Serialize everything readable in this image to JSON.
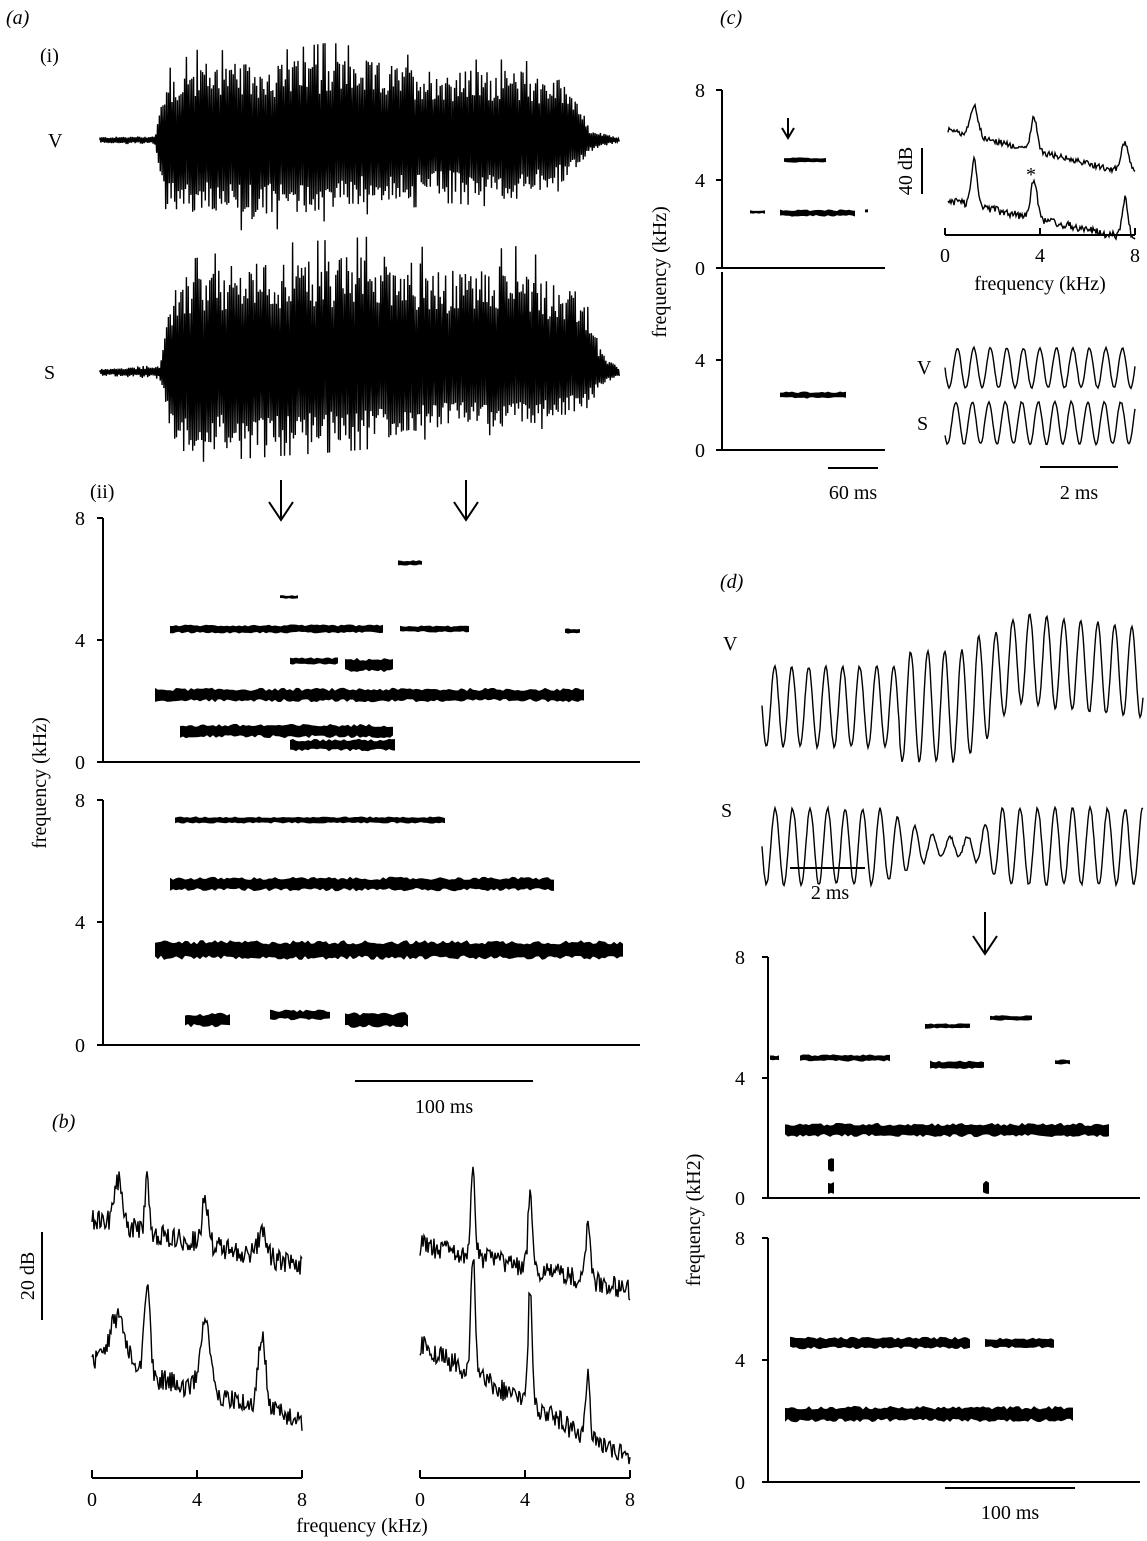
{
  "panel_a": {
    "label": "(a)",
    "sub_i": "(i)",
    "trace_labels": [
      "V",
      "S"
    ],
    "sub_ii": "(ii)",
    "y_axis_title": "frequency (kHz)",
    "ticks": [
      "0",
      "4",
      "8"
    ],
    "scale_bar": "100 ms"
  },
  "panel_b": {
    "label": "(b)",
    "scale_bar": "20 dB",
    "x_ticks": [
      "0",
      "4",
      "8"
    ],
    "x_axis_title": "frequency (kHz)"
  },
  "panel_c": {
    "label": "(c)",
    "y_axis_title": "frequency (kHz)",
    "ticks": [
      "0",
      "4",
      "8"
    ],
    "time_bar": "60 ms",
    "db_bar": "40 dB",
    "asterisk": "*",
    "spectrum_ticks": [
      "0",
      "4",
      "8"
    ],
    "spectrum_axis_title": "frequency (kHz)",
    "trace_labels": [
      "V",
      "S"
    ],
    "trace_bar": "2 ms"
  },
  "panel_d": {
    "label": "(d)",
    "trace_labels": [
      "V",
      "S"
    ],
    "trace_bar": "2 ms",
    "y_axis_title": "frequency (kH2)",
    "ticks": [
      "0",
      "4",
      "8"
    ],
    "time_bar": "100 ms"
  }
}
